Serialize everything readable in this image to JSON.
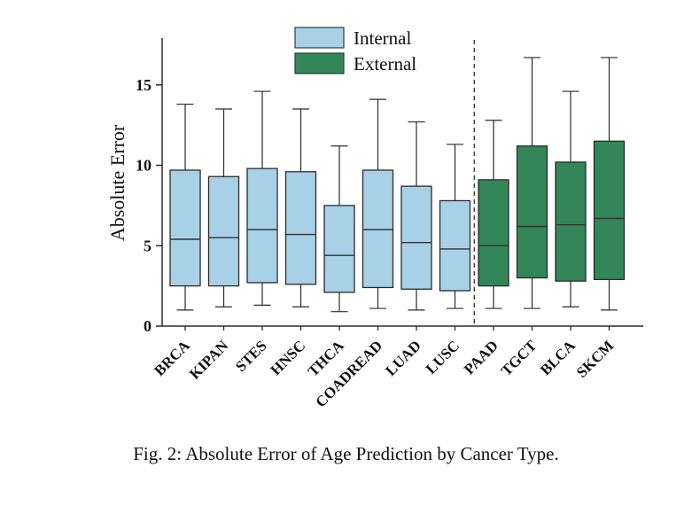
{
  "caption": "Fig. 2: Absolute Error of Age Prediction by Cancer Type.",
  "chart_data": {
    "type": "box",
    "title": "",
    "xlabel": "",
    "ylabel": "Absolute Error",
    "ylim": [
      0,
      17.8
    ],
    "yticks": [
      0,
      5,
      10,
      15
    ],
    "grid": false,
    "legend_position": "top-center",
    "legend": [
      {
        "label": "Internal",
        "color": "#a8d1e7"
      },
      {
        "label": "External",
        "color": "#338657"
      }
    ],
    "separator_after_index": 7,
    "categories": [
      "BRCA",
      "KIPAN",
      "STES",
      "HNSC",
      "THCA",
      "COADREAD",
      "LUAD",
      "LUSC",
      "PAAD",
      "TGCT",
      "BLCA",
      "SKCM"
    ],
    "boxes": [
      {
        "label": "BRCA",
        "group": "Internal",
        "low": 1.0,
        "q1": 2.5,
        "median": 5.4,
        "q3": 9.7,
        "high": 13.8
      },
      {
        "label": "KIPAN",
        "group": "Internal",
        "low": 1.2,
        "q1": 2.5,
        "median": 5.5,
        "q3": 9.3,
        "high": 13.5
      },
      {
        "label": "STES",
        "group": "Internal",
        "low": 1.3,
        "q1": 2.7,
        "median": 6.0,
        "q3": 9.8,
        "high": 14.6
      },
      {
        "label": "HNSC",
        "group": "Internal",
        "low": 1.2,
        "q1": 2.6,
        "median": 5.7,
        "q3": 9.6,
        "high": 13.5
      },
      {
        "label": "THCA",
        "group": "Internal",
        "low": 0.9,
        "q1": 2.1,
        "median": 4.4,
        "q3": 7.5,
        "high": 11.2
      },
      {
        "label": "COADREAD",
        "group": "Internal",
        "low": 1.1,
        "q1": 2.4,
        "median": 6.0,
        "q3": 9.7,
        "high": 14.1
      },
      {
        "label": "LUAD",
        "group": "Internal",
        "low": 1.0,
        "q1": 2.3,
        "median": 5.2,
        "q3": 8.7,
        "high": 12.7
      },
      {
        "label": "LUSC",
        "group": "Internal",
        "low": 1.1,
        "q1": 2.2,
        "median": 4.8,
        "q3": 7.8,
        "high": 11.3
      },
      {
        "label": "PAAD",
        "group": "External",
        "low": 1.1,
        "q1": 2.5,
        "median": 5.0,
        "q3": 9.1,
        "high": 12.8
      },
      {
        "label": "TGCT",
        "group": "External",
        "low": 1.1,
        "q1": 3.0,
        "median": 6.2,
        "q3": 11.2,
        "high": 16.7
      },
      {
        "label": "BLCA",
        "group": "External",
        "low": 1.2,
        "q1": 2.8,
        "median": 6.3,
        "q3": 10.2,
        "high": 14.6
      },
      {
        "label": "SKCM",
        "group": "External",
        "low": 1.0,
        "q1": 2.9,
        "median": 6.7,
        "q3": 11.5,
        "high": 16.7
      }
    ]
  }
}
